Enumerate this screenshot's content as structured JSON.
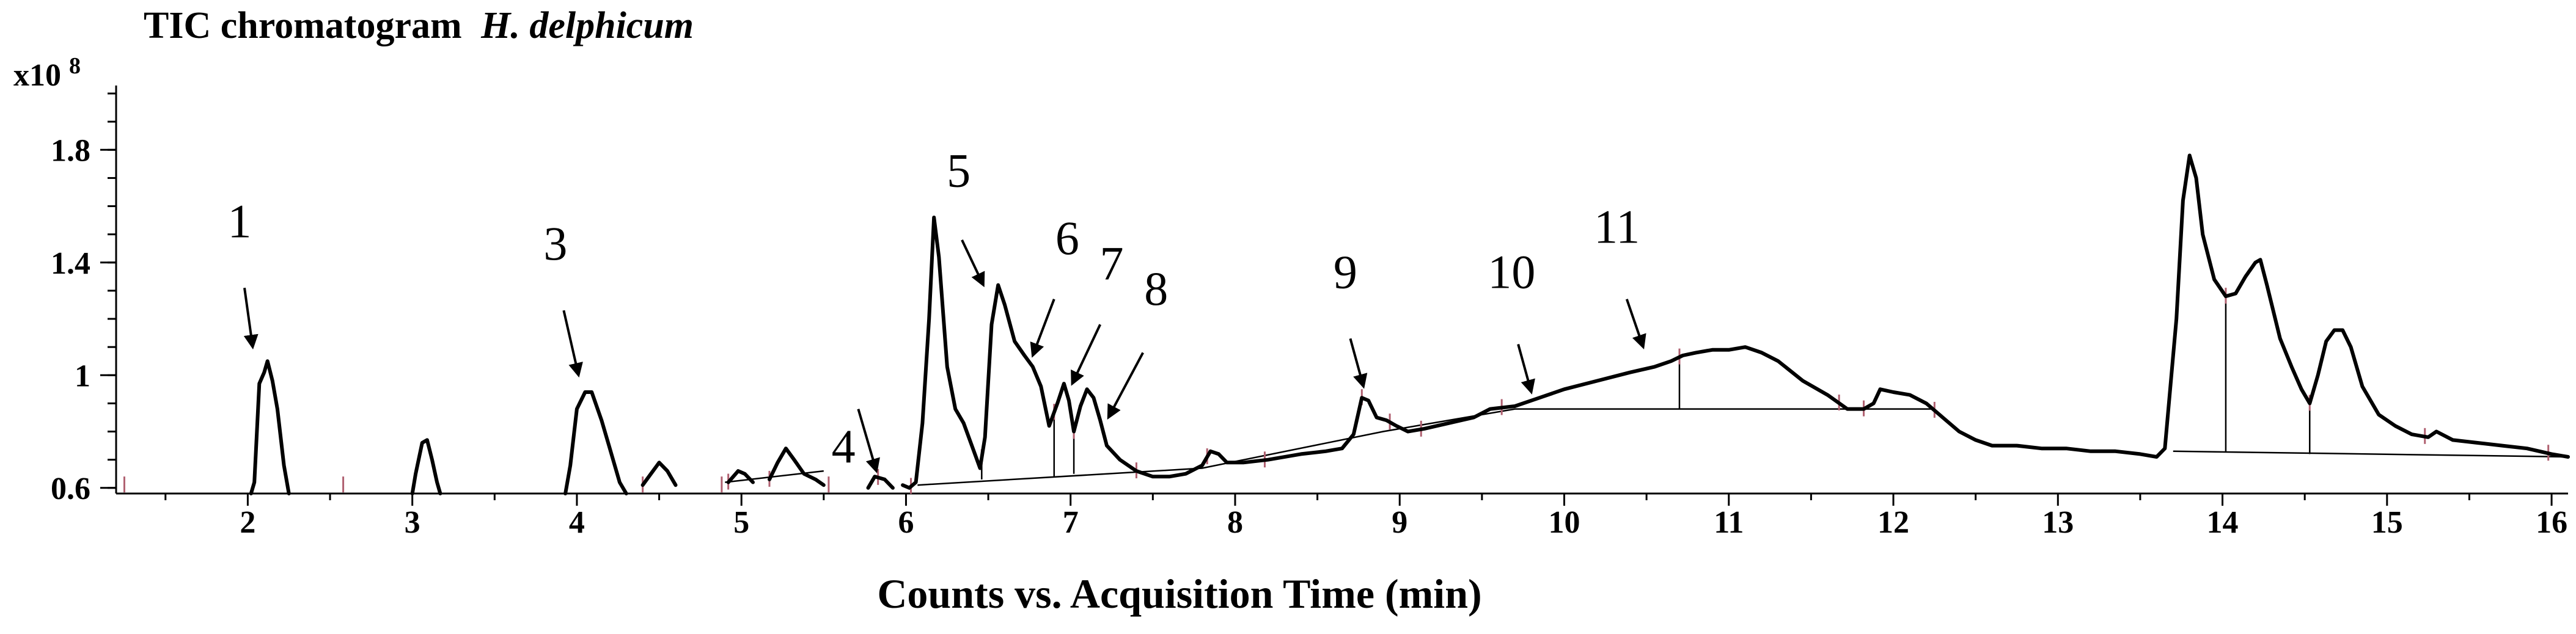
{
  "chart_data": {
    "type": "line",
    "title": "TIC chromatogram",
    "title_italic": "H. delphicum",
    "y_multiplier": "x10",
    "y_exponent": "8",
    "xlabel": "Counts vs. Acquisition Time (min)",
    "ylabel": "",
    "xlim": [
      1.2,
      16.1
    ],
    "ylim": [
      0.58,
      2.05
    ],
    "grid": false,
    "legend": "none",
    "x_ticks": [
      2,
      3,
      4,
      5,
      6,
      7,
      8,
      9,
      10,
      11,
      12,
      13,
      14,
      15,
      16
    ],
    "x_tick_labels": [
      "2",
      "3",
      "4",
      "5",
      "6",
      "7",
      "8",
      "9",
      "10",
      "11",
      "12",
      "13",
      "14",
      "15",
      "16"
    ],
    "y_ticks": [
      0.6,
      1.0,
      1.4,
      1.8
    ],
    "y_tick_labels": [
      "0.6",
      "1",
      "1.4",
      "1.8"
    ],
    "series": [
      {
        "segments": [
          [
            [
              2.02,
              0.58
            ],
            [
              2.04,
              0.62
            ],
            [
              2.07,
              0.97
            ],
            [
              2.1,
              1.01
            ],
            [
              2.12,
              1.05
            ],
            [
              2.15,
              0.98
            ],
            [
              2.18,
              0.88
            ],
            [
              2.22,
              0.68
            ],
            [
              2.25,
              0.58
            ]
          ],
          [
            [
              3.0,
              0.58
            ],
            [
              3.02,
              0.65
            ],
            [
              3.06,
              0.76
            ],
            [
              3.09,
              0.77
            ],
            [
              3.12,
              0.7
            ],
            [
              3.15,
              0.62
            ],
            [
              3.17,
              0.58
            ]
          ],
          [
            [
              3.93,
              0.58
            ],
            [
              3.96,
              0.68
            ],
            [
              4.0,
              0.88
            ],
            [
              4.05,
              0.94
            ],
            [
              4.09,
              0.94
            ],
            [
              4.15,
              0.84
            ],
            [
              4.2,
              0.74
            ],
            [
              4.26,
              0.62
            ],
            [
              4.3,
              0.58
            ]
          ],
          [
            [
              4.4,
              0.61
            ],
            [
              4.45,
              0.65
            ],
            [
              4.5,
              0.69
            ],
            [
              4.55,
              0.66
            ],
            [
              4.6,
              0.61
            ]
          ],
          [
            [
              4.92,
              0.62
            ],
            [
              4.98,
              0.66
            ],
            [
              5.02,
              0.65
            ],
            [
              5.07,
              0.62
            ]
          ],
          [
            [
              5.17,
              0.63
            ],
            [
              5.22,
              0.69
            ],
            [
              5.27,
              0.74
            ],
            [
              5.32,
              0.7
            ],
            [
              5.38,
              0.65
            ],
            [
              5.45,
              0.63
            ],
            [
              5.5,
              0.61
            ]
          ],
          [
            [
              5.77,
              0.6
            ],
            [
              5.81,
              0.64
            ],
            [
              5.87,
              0.63
            ],
            [
              5.92,
              0.6
            ]
          ],
          [
            [
              5.98,
              0.61
            ],
            [
              6.02,
              0.6
            ],
            [
              6.06,
              0.62
            ],
            [
              6.1,
              0.83
            ],
            [
              6.14,
              1.2
            ],
            [
              6.17,
              1.56
            ],
            [
              6.2,
              1.42
            ],
            [
              6.25,
              1.03
            ],
            [
              6.3,
              0.88
            ],
            [
              6.35,
              0.83
            ],
            [
              6.4,
              0.75
            ],
            [
              6.45,
              0.67
            ],
            [
              6.48,
              0.78
            ],
            [
              6.52,
              1.18
            ],
            [
              6.56,
              1.32
            ],
            [
              6.6,
              1.25
            ],
            [
              6.66,
              1.12
            ],
            [
              6.72,
              1.07
            ],
            [
              6.77,
              1.03
            ],
            [
              6.82,
              0.96
            ],
            [
              6.87,
              0.82
            ],
            [
              6.92,
              0.9
            ],
            [
              6.96,
              0.97
            ],
            [
              6.99,
              0.91
            ],
            [
              7.02,
              0.8
            ],
            [
              7.06,
              0.89
            ],
            [
              7.1,
              0.95
            ],
            [
              7.14,
              0.92
            ],
            [
              7.18,
              0.84
            ],
            [
              7.22,
              0.75
            ],
            [
              7.3,
              0.7
            ],
            [
              7.4,
              0.66
            ],
            [
              7.5,
              0.64
            ],
            [
              7.6,
              0.64
            ],
            [
              7.7,
              0.65
            ],
            [
              7.8,
              0.68
            ],
            [
              7.85,
              0.73
            ],
            [
              7.9,
              0.72
            ],
            [
              7.95,
              0.69
            ],
            [
              8.05,
              0.69
            ],
            [
              8.2,
              0.7
            ],
            [
              8.4,
              0.72
            ],
            [
              8.55,
              0.73
            ],
            [
              8.65,
              0.74
            ],
            [
              8.72,
              0.79
            ],
            [
              8.77,
              0.92
            ],
            [
              8.81,
              0.91
            ],
            [
              8.86,
              0.85
            ],
            [
              8.92,
              0.84
            ],
            [
              8.98,
              0.82
            ],
            [
              9.05,
              0.8
            ],
            [
              9.15,
              0.81
            ],
            [
              9.3,
              0.83
            ],
            [
              9.45,
              0.85
            ],
            [
              9.55,
              0.88
            ],
            [
              9.7,
              0.89
            ],
            [
              9.85,
              0.92
            ],
            [
              10.0,
              0.95
            ],
            [
              10.2,
              0.98
            ],
            [
              10.4,
              1.01
            ],
            [
              10.55,
              1.03
            ],
            [
              10.65,
              1.05
            ],
            [
              10.72,
              1.07
            ],
            [
              10.8,
              1.08
            ],
            [
              10.9,
              1.09
            ],
            [
              11.0,
              1.09
            ],
            [
              11.1,
              1.1
            ],
            [
              11.2,
              1.08
            ],
            [
              11.3,
              1.05
            ],
            [
              11.45,
              0.98
            ],
            [
              11.6,
              0.93
            ],
            [
              11.72,
              0.88
            ],
            [
              11.82,
              0.88
            ],
            [
              11.88,
              0.9
            ],
            [
              11.92,
              0.95
            ],
            [
              12.0,
              0.94
            ],
            [
              12.1,
              0.93
            ],
            [
              12.2,
              0.9
            ],
            [
              12.3,
              0.85
            ],
            [
              12.4,
              0.8
            ],
            [
              12.5,
              0.77
            ],
            [
              12.6,
              0.75
            ],
            [
              12.75,
              0.75
            ],
            [
              12.9,
              0.74
            ],
            [
              13.05,
              0.74
            ],
            [
              13.2,
              0.73
            ],
            [
              13.35,
              0.73
            ],
            [
              13.5,
              0.72
            ],
            [
              13.6,
              0.71
            ],
            [
              13.65,
              0.74
            ],
            [
              13.72,
              1.2
            ],
            [
              13.76,
              1.62
            ],
            [
              13.8,
              1.78
            ],
            [
              13.84,
              1.7
            ],
            [
              13.88,
              1.5
            ],
            [
              13.95,
              1.34
            ],
            [
              14.02,
              1.28
            ],
            [
              14.08,
              1.29
            ],
            [
              14.14,
              1.35
            ],
            [
              14.2,
              1.4
            ],
            [
              14.23,
              1.41
            ],
            [
              14.27,
              1.32
            ],
            [
              14.35,
              1.13
            ],
            [
              14.42,
              1.03
            ],
            [
              14.48,
              0.95
            ],
            [
              14.53,
              0.9
            ],
            [
              14.58,
              1.0
            ],
            [
              14.63,
              1.12
            ],
            [
              14.68,
              1.16
            ],
            [
              14.73,
              1.16
            ],
            [
              14.78,
              1.1
            ],
            [
              14.85,
              0.96
            ],
            [
              14.95,
              0.86
            ],
            [
              15.05,
              0.82
            ],
            [
              15.15,
              0.79
            ],
            [
              15.25,
              0.78
            ],
            [
              15.3,
              0.8
            ],
            [
              15.4,
              0.77
            ],
            [
              15.55,
              0.76
            ],
            [
              15.7,
              0.75
            ],
            [
              15.85,
              0.74
            ],
            [
              16.0,
              0.72
            ],
            [
              16.1,
              0.71
            ]
          ]
        ]
      }
    ],
    "baselines": [
      [
        [
          4.9,
          0.62
        ],
        [
          5.5,
          0.66
        ]
      ],
      [
        [
          6.07,
          0.61
        ],
        [
          7.8,
          0.67
        ],
        [
          8.9,
          0.8
        ],
        [
          9.7,
          0.88
        ],
        [
          12.25,
          0.88
        ]
      ],
      [
        [
          13.7,
          0.73
        ],
        [
          16.1,
          0.71
        ]
      ]
    ],
    "peak_dividers": [
      [
        6.46,
        0.63
      ],
      [
        6.9,
        0.64
      ],
      [
        7.02,
        0.65
      ],
      [
        10.7,
        0.88
      ],
      [
        14.02,
        0.73
      ],
      [
        14.53,
        0.72
      ]
    ],
    "integration_marks": [
      1.25,
      2.58,
      4.4,
      4.88,
      4.92,
      5.17,
      5.53,
      5.83,
      6.03,
      6.07,
      6.46,
      6.9,
      7.02,
      7.4,
      7.83,
      8.18,
      8.77,
      8.94,
      9.13,
      9.62,
      10.7,
      11.67,
      11.82,
      12.25,
      13.68,
      14.02,
      14.53,
      15.23,
      15.98
    ],
    "annotations": [
      {
        "text": "1",
        "label_x": 1.95,
        "label_y": 1.49,
        "arrow_from": [
          1.98,
          1.31
        ],
        "arrow_to": [
          2.03,
          1.1
        ]
      },
      {
        "text": "3",
        "label_x": 3.87,
        "label_y": 1.41,
        "arrow_from": [
          3.92,
          1.23
        ],
        "arrow_to": [
          4.01,
          1.0
        ]
      },
      {
        "text": "4",
        "label_x": 5.62,
        "label_y": 0.69,
        "arrow_from": [
          5.71,
          0.88
        ],
        "arrow_to": [
          5.82,
          0.66
        ],
        "label_above": true
      },
      {
        "text": "5",
        "label_x": 6.32,
        "label_y": 1.67,
        "arrow_from": [
          6.34,
          1.48
        ],
        "arrow_to": [
          6.47,
          1.32
        ]
      },
      {
        "text": "6",
        "label_x": 6.98,
        "label_y": 1.43,
        "arrow_from": [
          6.9,
          1.27
        ],
        "arrow_to": [
          6.77,
          1.07
        ]
      },
      {
        "text": "7",
        "label_x": 7.25,
        "label_y": 1.34,
        "arrow_from": [
          7.18,
          1.18
        ],
        "arrow_to": [
          7.01,
          0.97
        ]
      },
      {
        "text": "8",
        "label_x": 7.52,
        "label_y": 1.25,
        "arrow_from": [
          7.44,
          1.08
        ],
        "arrow_to": [
          7.23,
          0.85
        ]
      },
      {
        "text": "9",
        "label_x": 8.67,
        "label_y": 1.31,
        "arrow_from": [
          8.7,
          1.13
        ],
        "arrow_to": [
          8.78,
          0.96
        ]
      },
      {
        "text": "10",
        "label_x": 9.68,
        "label_y": 1.31,
        "arrow_from": [
          9.72,
          1.11
        ],
        "arrow_to": [
          9.8,
          0.94
        ]
      },
      {
        "text": "11",
        "label_x": 10.32,
        "label_y": 1.47,
        "arrow_from": [
          10.38,
          1.27
        ],
        "arrow_to": [
          10.48,
          1.1
        ]
      }
    ]
  }
}
